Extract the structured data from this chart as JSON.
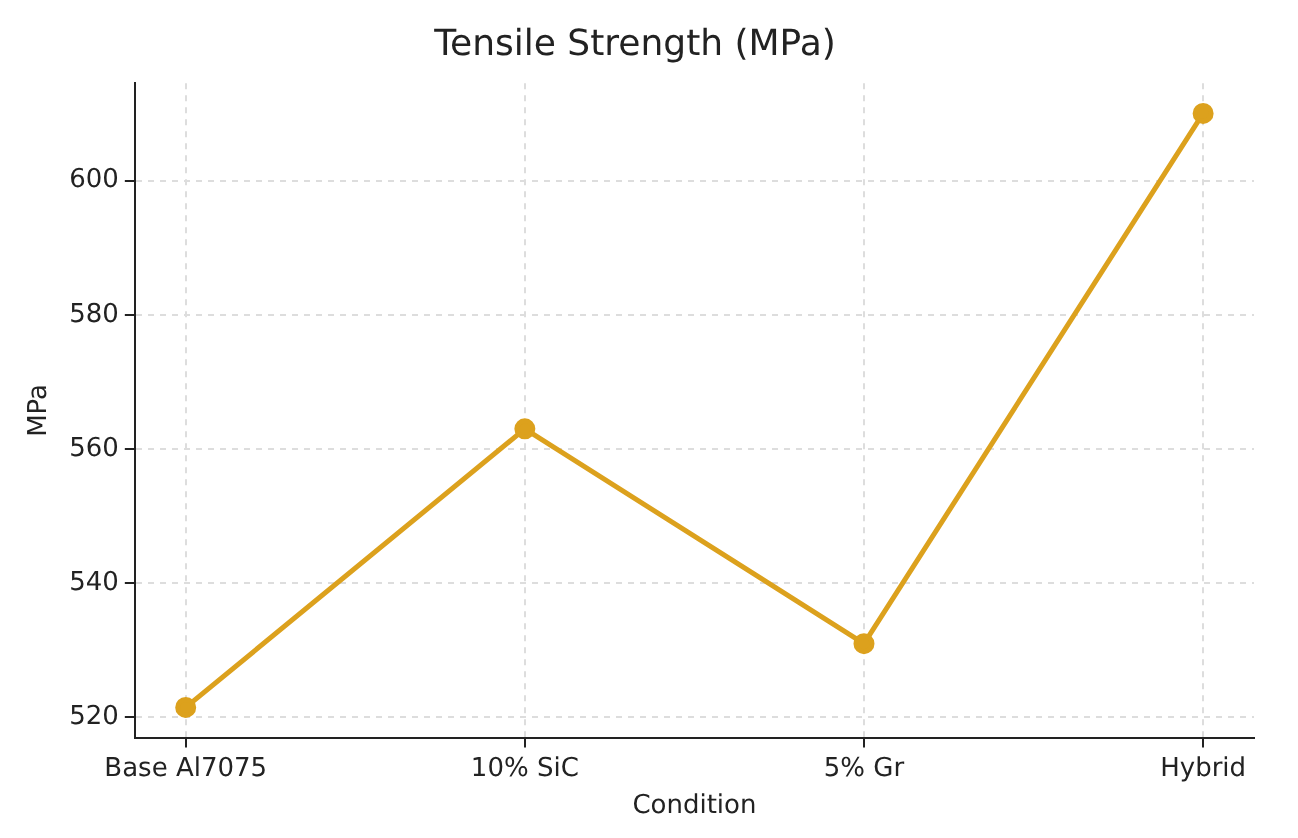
{
  "chart_data": {
    "type": "line",
    "title": "Tensile Strength (MPa)",
    "xlabel": "Condition",
    "ylabel": "MPa",
    "categories": [
      "Base Al7075",
      "10% SiC",
      "5% Gr",
      "Hybrid"
    ],
    "series": [
      {
        "color": "#dca11d",
        "values": [
          521.5,
          563,
          531,
          610
        ]
      }
    ],
    "ylim": [
      517,
      614.5
    ],
    "yticks": [
      520,
      540,
      560,
      580,
      600
    ],
    "grid": true,
    "legend": false,
    "marker": "circle",
    "line_style": "solid"
  }
}
